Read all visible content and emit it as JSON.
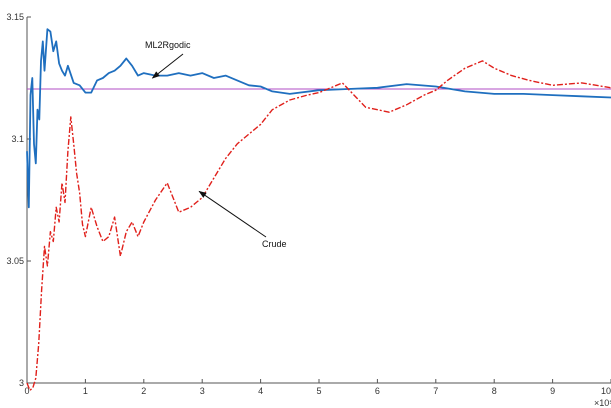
{
  "chart_data": {
    "type": "line",
    "title": "",
    "xlabel": "",
    "ylabel": "",
    "x_exponent_label": "×10⁵",
    "xlim": [
      0,
      10
    ],
    "ylim": [
      3.0,
      3.15
    ],
    "xticks": [
      0,
      1,
      2,
      3,
      4,
      5,
      6,
      7,
      8,
      9,
      10
    ],
    "xtick_labels": [
      "0",
      "1",
      "2",
      "3",
      "4",
      "5",
      "6",
      "7",
      "8",
      "9",
      "10"
    ],
    "yticks": [
      3.0,
      3.05,
      3.1,
      3.15
    ],
    "ytick_labels": [
      "3",
      "3.05",
      "3.1",
      "3.15"
    ],
    "grid": false,
    "colors": {
      "ml2rgodic": "#1f6fbf",
      "crude": "#e0201b",
      "reference": "#b04cc4",
      "axis": "#555555"
    },
    "reference_line": {
      "y": 3.1205
    },
    "series": [
      {
        "name": "ML2Rgodic",
        "style": "solid",
        "points": [
          [
            0.0,
            3.095
          ],
          [
            0.03,
            3.072
          ],
          [
            0.06,
            3.118
          ],
          [
            0.09,
            3.125
          ],
          [
            0.12,
            3.098
          ],
          [
            0.15,
            3.09
          ],
          [
            0.18,
            3.112
          ],
          [
            0.21,
            3.108
          ],
          [
            0.24,
            3.132
          ],
          [
            0.27,
            3.14
          ],
          [
            0.3,
            3.128
          ],
          [
            0.35,
            3.145
          ],
          [
            0.4,
            3.144
          ],
          [
            0.45,
            3.136
          ],
          [
            0.5,
            3.14
          ],
          [
            0.55,
            3.131
          ],
          [
            0.6,
            3.128
          ],
          [
            0.65,
            3.126
          ],
          [
            0.7,
            3.13
          ],
          [
            0.8,
            3.123
          ],
          [
            0.9,
            3.122
          ],
          [
            1.0,
            3.119
          ],
          [
            1.1,
            3.119
          ],
          [
            1.2,
            3.124
          ],
          [
            1.3,
            3.125
          ],
          [
            1.4,
            3.127
          ],
          [
            1.5,
            3.128
          ],
          [
            1.6,
            3.13
          ],
          [
            1.7,
            3.133
          ],
          [
            1.8,
            3.13
          ],
          [
            1.9,
            3.126
          ],
          [
            2.0,
            3.127
          ],
          [
            2.2,
            3.126
          ],
          [
            2.4,
            3.126
          ],
          [
            2.6,
            3.127
          ],
          [
            2.8,
            3.126
          ],
          [
            3.0,
            3.127
          ],
          [
            3.2,
            3.125
          ],
          [
            3.4,
            3.126
          ],
          [
            3.6,
            3.124
          ],
          [
            3.8,
            3.122
          ],
          [
            4.0,
            3.1215
          ],
          [
            4.2,
            3.1195
          ],
          [
            4.5,
            3.1185
          ],
          [
            5.0,
            3.12
          ],
          [
            5.5,
            3.1205
          ],
          [
            6.0,
            3.121
          ],
          [
            6.5,
            3.1225
          ],
          [
            7.0,
            3.1215
          ],
          [
            7.5,
            3.1195
          ],
          [
            8.0,
            3.1185
          ],
          [
            8.5,
            3.1185
          ],
          [
            9.0,
            3.118
          ],
          [
            9.5,
            3.1175
          ],
          [
            10.0,
            3.117
          ]
        ]
      },
      {
        "name": "Crude",
        "style": "dashed",
        "points": [
          [
            0.0,
            3.0
          ],
          [
            0.05,
            2.997
          ],
          [
            0.1,
            2.998
          ],
          [
            0.15,
            3.002
          ],
          [
            0.2,
            3.016
          ],
          [
            0.25,
            3.038
          ],
          [
            0.3,
            3.056
          ],
          [
            0.35,
            3.048
          ],
          [
            0.4,
            3.062
          ],
          [
            0.45,
            3.058
          ],
          [
            0.5,
            3.072
          ],
          [
            0.55,
            3.066
          ],
          [
            0.6,
            3.082
          ],
          [
            0.65,
            3.074
          ],
          [
            0.7,
            3.095
          ],
          [
            0.75,
            3.109
          ],
          [
            0.8,
            3.098
          ],
          [
            0.85,
            3.086
          ],
          [
            0.9,
            3.078
          ],
          [
            0.95,
            3.065
          ],
          [
            1.0,
            3.06
          ],
          [
            1.1,
            3.072
          ],
          [
            1.2,
            3.064
          ],
          [
            1.3,
            3.058
          ],
          [
            1.4,
            3.06
          ],
          [
            1.5,
            3.068
          ],
          [
            1.6,
            3.052
          ],
          [
            1.7,
            3.062
          ],
          [
            1.8,
            3.066
          ],
          [
            1.9,
            3.06
          ],
          [
            2.0,
            3.066
          ],
          [
            2.2,
            3.075
          ],
          [
            2.4,
            3.082
          ],
          [
            2.6,
            3.07
          ],
          [
            2.8,
            3.072
          ],
          [
            3.0,
            3.076
          ],
          [
            3.2,
            3.084
          ],
          [
            3.4,
            3.092
          ],
          [
            3.6,
            3.098
          ],
          [
            3.8,
            3.102
          ],
          [
            4.0,
            3.106
          ],
          [
            4.2,
            3.112
          ],
          [
            4.5,
            3.116
          ],
          [
            4.8,
            3.118
          ],
          [
            5.0,
            3.119
          ],
          [
            5.2,
            3.121
          ],
          [
            5.4,
            3.123
          ],
          [
            5.6,
            3.118
          ],
          [
            5.8,
            3.113
          ],
          [
            6.0,
            3.112
          ],
          [
            6.2,
            3.111
          ],
          [
            6.5,
            3.114
          ],
          [
            6.8,
            3.118
          ],
          [
            7.0,
            3.12
          ],
          [
            7.2,
            3.124
          ],
          [
            7.5,
            3.129
          ],
          [
            7.8,
            3.132
          ],
          [
            8.0,
            3.129
          ],
          [
            8.3,
            3.126
          ],
          [
            8.6,
            3.124
          ],
          [
            9.0,
            3.122
          ],
          [
            9.5,
            3.123
          ],
          [
            10.0,
            3.121
          ]
        ]
      }
    ],
    "annotations": [
      {
        "text": "ML2Rgodic",
        "arrow_tip": [
          2.15,
          3.125
        ]
      },
      {
        "text": "Crude",
        "arrow_tip": [
          2.95,
          3.0785
        ]
      }
    ]
  }
}
